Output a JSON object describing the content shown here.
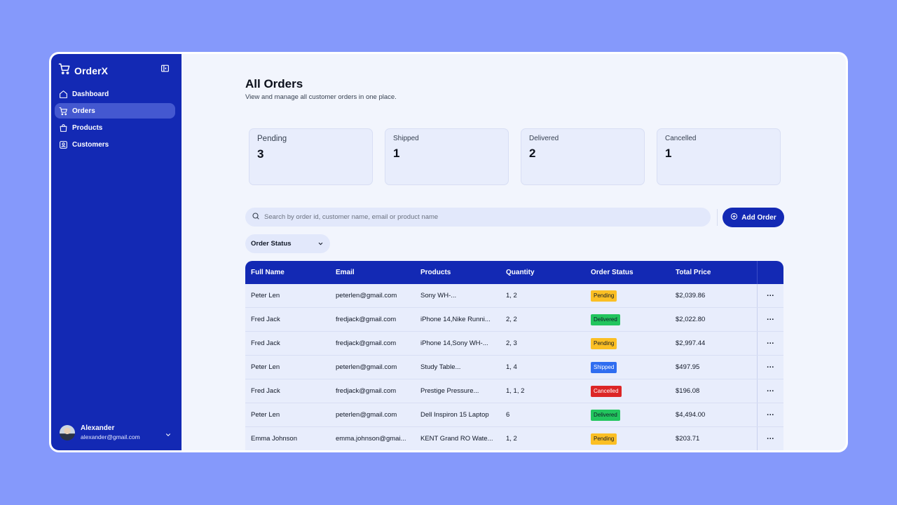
{
  "app": {
    "name": "OrderX"
  },
  "sidebar": {
    "items": [
      {
        "label": "Dashboard",
        "icon": "home-icon",
        "active": false
      },
      {
        "label": "Orders",
        "icon": "cart-icon",
        "active": true
      },
      {
        "label": "Products",
        "icon": "bag-icon",
        "active": false
      },
      {
        "label": "Customers",
        "icon": "user-icon",
        "active": false
      }
    ],
    "user": {
      "name": "Alexander",
      "email": "alexander@gmail.com"
    }
  },
  "header": {
    "title": "All Orders",
    "subtitle": "View and manage all customer orders in one place."
  },
  "stats": [
    {
      "label": "Pending",
      "value": "3"
    },
    {
      "label": "Shipped",
      "value": "1"
    },
    {
      "label": "Delivered",
      "value": "2"
    },
    {
      "label": "Cancelled",
      "value": "1"
    }
  ],
  "search": {
    "placeholder": "Search by order id, customer name, email or product name",
    "value": ""
  },
  "actions": {
    "add_order": "Add Order"
  },
  "filter": {
    "label": "Order Status"
  },
  "table": {
    "columns": [
      "Full Name",
      "Email",
      "Products",
      "Quantity",
      "Order Status",
      "Total Price"
    ],
    "rows": [
      {
        "name": "Peter Len",
        "email": "peterlen@gmail.com",
        "products": "Sony WH-...",
        "quantity": "1, 2",
        "status": "Pending",
        "price": "$2,039.86"
      },
      {
        "name": "Fred Jack",
        "email": "fredjack@gmail.com",
        "products": "iPhone 14,Nike Runni...",
        "quantity": "2, 2",
        "status": "Delivered",
        "price": "$2,022.80"
      },
      {
        "name": "Fred Jack",
        "email": "fredjack@gmail.com",
        "products": "iPhone 14,Sony WH-...",
        "quantity": "2, 3",
        "status": "Pending",
        "price": "$2,997.44"
      },
      {
        "name": "Peter Len",
        "email": "peterlen@gmail.com",
        "products": "Study Table...",
        "quantity": "1, 4",
        "status": "Shipped",
        "price": "$497.95"
      },
      {
        "name": "Fred Jack",
        "email": "fredjack@gmail.com",
        "products": "Prestige Pressure...",
        "quantity": "1, 1, 2",
        "status": "Cancelled",
        "price": "$196.08"
      },
      {
        "name": "Peter Len",
        "email": "peterlen@gmail.com",
        "products": "Dell Inspiron 15 Laptop",
        "quantity": "6",
        "status": "Delivered",
        "price": "$4,494.00"
      },
      {
        "name": "Emma Johnson",
        "email": "emma.johnson@gmai...",
        "products": "KENT Grand RO Wate...",
        "quantity": "1, 2",
        "status": "Pending",
        "price": "$203.71"
      }
    ],
    "more_label": "..."
  },
  "colors": {
    "background": "#8599fb",
    "sidebar": "#1329b4",
    "accent": "#1329b4",
    "status": {
      "Pending": {
        "bg": "#fbbf24",
        "fg": "#111827"
      },
      "Delivered": {
        "bg": "#22c55e",
        "fg": "#111827"
      },
      "Shipped": {
        "bg": "#2f6df0",
        "fg": "#ffffff"
      },
      "Cancelled": {
        "bg": "#dc2626",
        "fg": "#ffffff"
      }
    }
  }
}
